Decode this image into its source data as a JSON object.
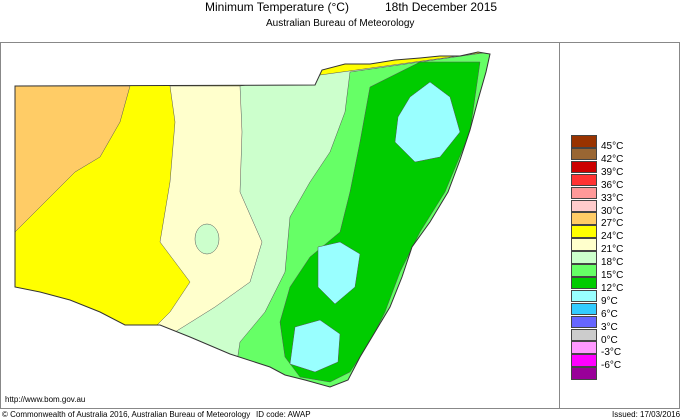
{
  "header": {
    "title": "Minimum Temperature (°C)",
    "date": "18th December 2015",
    "subtitle": "Australian Bureau of Meteorology"
  },
  "footer": {
    "url": "http://www.bom.gov.au",
    "copyright": "© Commonwealth of Australia 2016, Australian Bureau of Meteorology",
    "id_code": "ID code: AWAP",
    "issued": "Issued: 17/03/2016"
  },
  "legend": {
    "colors": [
      "#993300",
      "#996633",
      "#CC0000",
      "#FF3333",
      "#FF9999",
      "#FFCCCC",
      "#FFCC66",
      "#FFFF00",
      "#FFFFCC",
      "#CCFFCC",
      "#66FF66",
      "#00CC00",
      "#99FFFF",
      "#33CCFF",
      "#6666FF",
      "#CCCCCC",
      "#FF99FF",
      "#FF00FF",
      "#990099"
    ],
    "labels": [
      "45°C",
      "42°C",
      "39°C",
      "36°C",
      "33°C",
      "30°C",
      "27°C",
      "24°C",
      "21°C",
      "18°C",
      "15°C",
      "12°C",
      "9°C",
      "6°C",
      "3°C",
      "0°C",
      "-3°C",
      "-6°C"
    ]
  },
  "map": {
    "region": "New South Wales",
    "zone_colors": {
      "orange": "#FFCC66",
      "yellow": "#FFFF00",
      "light_yellow": "#FFFFCC",
      "light_green": "#CCFFCC",
      "green": "#66FF66",
      "dark_green": "#00CC00",
      "cyan": "#99FFFF"
    }
  }
}
